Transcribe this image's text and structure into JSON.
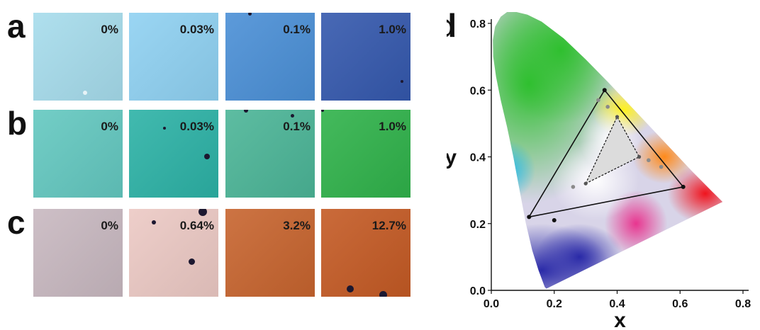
{
  "panels": [
    {
      "letter": "a",
      "tiles": [
        {
          "label": "0%",
          "color": "#a6dcec"
        },
        {
          "label": "0.03%",
          "color": "#8fd1f2"
        },
        {
          "label": "0.1%",
          "color": "#4a8fd6"
        },
        {
          "label": "1.0%",
          "color": "#3458ad"
        }
      ]
    },
    {
      "letter": "b",
      "tiles": [
        {
          "label": "0%",
          "color": "#63c8c0"
        },
        {
          "label": "0.03%",
          "color": "#2cb2a6"
        },
        {
          "label": "0.1%",
          "color": "#4bb597"
        },
        {
          "label": "1.0%",
          "color": "#2fb24a"
        }
      ]
    },
    {
      "letter": "c",
      "tiles": [
        {
          "label": "0%",
          "color": "#c8b8c0"
        },
        {
          "label": "0.64%",
          "color": "#ecc9c4"
        },
        {
          "label": "3.2%",
          "color": "#c7642e"
        },
        {
          "label": "12.7%",
          "color": "#c45a24"
        }
      ]
    }
  ],
  "chart_data": {
    "type": "scatter",
    "panel_letter": "d",
    "xlabel": "x",
    "ylabel": "y",
    "xlim": [
      0.0,
      0.8
    ],
    "ylim": [
      0.0,
      0.8
    ],
    "x_ticks": [
      "0.0",
      "0.2",
      "0.4",
      "0.6",
      "0.8"
    ],
    "y_ticks": [
      "0.0",
      "0.2",
      "0.4",
      "0.6",
      "0.8"
    ],
    "grid": false,
    "outer_triangle": [
      [
        0.12,
        0.22
      ],
      [
        0.36,
        0.6
      ],
      [
        0.61,
        0.31
      ]
    ],
    "inner_triangle": [
      [
        0.3,
        0.32
      ],
      [
        0.4,
        0.52
      ],
      [
        0.47,
        0.4
      ]
    ],
    "points_dark": [
      [
        0.2,
        0.21
      ]
    ],
    "points_gray": [
      [
        0.26,
        0.31
      ],
      [
        0.34,
        0.57
      ],
      [
        0.37,
        0.55
      ],
      [
        0.5,
        0.39
      ],
      [
        0.54,
        0.37
      ]
    ]
  }
}
